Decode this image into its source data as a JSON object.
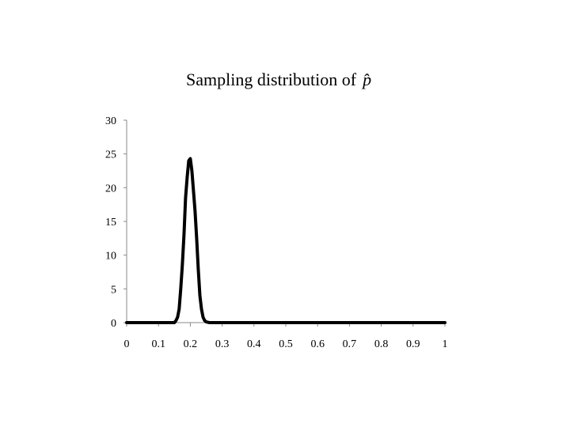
{
  "chart_data": {
    "type": "line",
    "title": "Sampling distribution of",
    "title_symbol": "p̂",
    "xlabel": "",
    "ylabel": "",
    "xlim": [
      0,
      1
    ],
    "ylim": [
      0,
      30
    ],
    "x_ticks": [
      "0",
      "0.1",
      "0.2",
      "0.3",
      "0.4",
      "0.5",
      "0.6",
      "0.7",
      "0.8",
      "0.9",
      "1"
    ],
    "y_ticks": [
      "0",
      "5",
      "10",
      "15",
      "20",
      "25",
      "30"
    ],
    "grid": false,
    "legend": "none",
    "series": [
      {
        "color": "#000000",
        "x": [
          0,
          0.14,
          0.15,
          0.155,
          0.16,
          0.165,
          0.17,
          0.175,
          0.18,
          0.185,
          0.19,
          0.195,
          0.2,
          0.205,
          0.21,
          0.215,
          0.22,
          0.225,
          0.23,
          0.235,
          0.24,
          0.245,
          0.25,
          0.26,
          0.3,
          0.5,
          0.7,
          0.9,
          1
        ],
        "y": [
          0,
          0,
          0,
          0.3,
          0.8,
          2.0,
          5.0,
          8.5,
          13.0,
          18.5,
          21.5,
          24.0,
          24.3,
          22.5,
          19.5,
          16.5,
          12.5,
          8.0,
          4.0,
          2.0,
          0.8,
          0.3,
          0.1,
          0,
          0,
          0,
          0,
          0,
          0
        ]
      }
    ]
  }
}
